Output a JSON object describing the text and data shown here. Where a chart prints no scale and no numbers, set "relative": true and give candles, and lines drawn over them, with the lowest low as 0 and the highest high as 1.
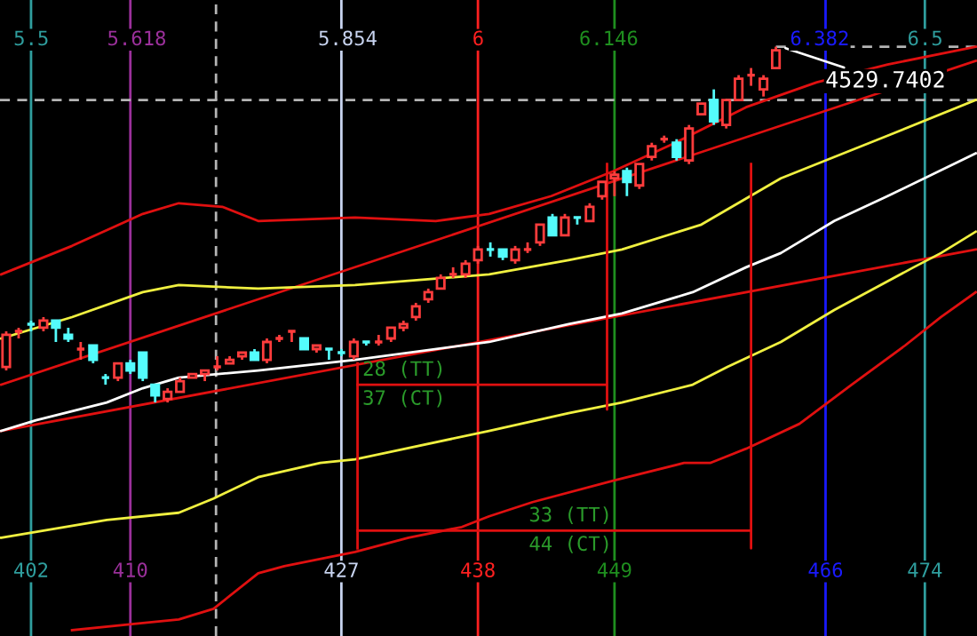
{
  "chart_data": {
    "type": "candlestick",
    "relative": true,
    "tick_labels": "x",
    "x": [
      400,
      401,
      402,
      403,
      404,
      405,
      406,
      407,
      408,
      409,
      410,
      411,
      412,
      413,
      414,
      415,
      416,
      417,
      418,
      419,
      420,
      421,
      422,
      423,
      424,
      425,
      426,
      427,
      428,
      429,
      430,
      431,
      432,
      433,
      434,
      435,
      436,
      437,
      438,
      439,
      440,
      441,
      442,
      443,
      444,
      445,
      446,
      447,
      448,
      449,
      450,
      451,
      452,
      453,
      454,
      455,
      456,
      457,
      458,
      459,
      460,
      461,
      462
    ],
    "ohlc": [
      [
        0.1,
        0.2,
        0.09,
        0.19
      ],
      [
        0.2,
        0.21,
        0.18,
        0.2
      ],
      [
        0.22,
        0.23,
        0.2,
        0.22
      ],
      [
        0.21,
        0.24,
        0.2,
        0.23
      ],
      [
        0.23,
        0.23,
        0.17,
        0.21
      ],
      [
        0.19,
        0.21,
        0.17,
        0.18
      ],
      [
        0.15,
        0.17,
        0.12,
        0.15
      ],
      [
        0.16,
        0.16,
        0.11,
        0.12
      ],
      [
        0.07,
        0.08,
        0.05,
        0.07
      ],
      [
        0.07,
        0.11,
        0.06,
        0.11
      ],
      [
        0.11,
        0.12,
        0.08,
        0.09
      ],
      [
        0.14,
        0.14,
        0.06,
        0.07
      ],
      [
        0.05,
        0.05,
        0.0,
        0.02
      ],
      [
        0.01,
        0.04,
        0,
        0.03
      ],
      [
        0.03,
        0.07,
        0.03,
        0.06
      ],
      [
        0.07,
        0.08,
        0.07,
        0.08
      ],
      [
        0.08,
        0.09,
        0.06,
        0.09
      ],
      [
        0.1,
        0.13,
        0.09,
        0.1
      ],
      [
        0.11,
        0.13,
        0.11,
        0.12
      ],
      [
        0.13,
        0.14,
        0.12,
        0.14
      ],
      [
        0.14,
        0.15,
        0.12,
        0.12
      ],
      [
        0.12,
        0.18,
        0.11,
        0.17
      ],
      [
        0.18,
        0.19,
        0.17,
        0.18
      ],
      [
        0.2,
        0.2,
        0.17,
        0.2
      ],
      [
        0.18,
        0.18,
        0.15,
        0.15
      ],
      [
        0.15,
        0.16,
        0.14,
        0.16
      ],
      [
        0.15,
        0.15,
        0.12,
        0.15
      ],
      [
        0.14,
        0.15,
        0.13,
        0.14
      ],
      [
        0.13,
        0.18,
        0.12,
        0.17
      ],
      [
        0.17,
        0.17,
        0.16,
        0.17
      ],
      [
        0.17,
        0.19,
        0.16,
        0.17
      ],
      [
        0.18,
        0.21,
        0.17,
        0.21
      ],
      [
        0.21,
        0.23,
        0.2,
        0.22
      ],
      [
        0.24,
        0.28,
        0.23,
        0.27
      ],
      [
        0.29,
        0.32,
        0.28,
        0.31
      ],
      [
        0.32,
        0.36,
        0.32,
        0.35
      ],
      [
        0.36,
        0.38,
        0.35,
        0.36
      ],
      [
        0.36,
        0.4,
        0.35,
        0.39
      ],
      [
        0.4,
        0.44,
        0.39,
        0.43
      ],
      [
        0.43,
        0.45,
        0.41,
        0.43
      ],
      [
        0.43,
        0.43,
        0.4,
        0.41
      ],
      [
        0.4,
        0.44,
        0.39,
        0.43
      ],
      [
        0.43,
        0.45,
        0.42,
        0.43
      ],
      [
        0.45,
        0.5,
        0.44,
        0.5
      ],
      [
        0.52,
        0.53,
        0.47,
        0.47
      ],
      [
        0.47,
        0.53,
        0.47,
        0.52
      ],
      [
        0.52,
        0.52,
        0.5,
        0.52
      ],
      [
        0.51,
        0.56,
        0.51,
        0.55
      ],
      [
        0.58,
        0.62,
        0.57,
        0.62
      ],
      [
        0.63,
        0.65,
        0.58,
        0.64
      ],
      [
        0.65,
        0.66,
        0.58,
        0.62
      ],
      [
        0.61,
        0.67,
        0.6,
        0.67
      ],
      [
        0.69,
        0.73,
        0.68,
        0.72
      ],
      [
        0.74,
        0.75,
        0.73,
        0.74
      ],
      [
        0.73,
        0.74,
        0.68,
        0.69
      ],
      [
        0.68,
        0.78,
        0.67,
        0.77
      ],
      [
        0.81,
        0.84,
        0.81,
        0.84
      ],
      [
        0.85,
        0.88,
        0.78,
        0.79
      ],
      [
        0.78,
        0.85,
        0.77,
        0.85
      ],
      [
        0.85,
        0.92,
        0.85,
        0.91
      ],
      [
        0.92,
        0.94,
        0.89,
        0.92
      ],
      [
        0.88,
        0.92,
        0.86,
        0.91
      ],
      [
        0.94,
        1,
        0.94,
        0.99
      ]
    ],
    "colors": [
      "#ff3c3c",
      "#ff3c3c",
      "#54fcfc",
      "#ff3c3c",
      "#54fcfc",
      "#54fcfc",
      "#ff3c3c",
      "#54fcfc",
      "#54fcfc",
      "#ff3c3c",
      "#54fcfc",
      "#54fcfc",
      "#54fcfc",
      "#ff3c3c",
      "#ff3c3c",
      "#ff3c3c",
      "#ff3c3c",
      "#ff3c3c",
      "#ff3c3c",
      "#ff3c3c",
      "#54fcfc",
      "#ff3c3c",
      "#ff3c3c",
      "#ff3c3c",
      "#54fcfc",
      "#ff3c3c",
      "#54fcfc",
      "#54fcfc",
      "#ff3c3c",
      "#54fcfc",
      "#ff3c3c",
      "#ff3c3c",
      "#ff3c3c",
      "#ff3c3c",
      "#ff3c3c",
      "#ff3c3c",
      "#ff3c3c",
      "#ff3c3c",
      "#ff3c3c",
      "#54fcfc",
      "#54fcfc",
      "#ff3c3c",
      "#ff3c3c",
      "#ff3c3c",
      "#54fcfc",
      "#ff3c3c",
      "#54fcfc",
      "#ff3c3c",
      "#ff3c3c",
      "#ff3c3c",
      "#54fcfc",
      "#ff3c3c",
      "#ff3c3c",
      "#ff3c3c",
      "#54fcfc",
      "#ff3c3c",
      "#ff3c3c",
      "#54fcfc",
      "#ff3c3c",
      "#ff3c3c",
      "#ff3c3c",
      "#ff3c3c",
      "#ff3c3c"
    ],
    "series": [
      {
        "type": "line",
        "color": "#e01010",
        "x": [
          399.6,
          405.3,
          411,
          413.9,
          417.4,
          420.3,
          428.1,
          434.6,
          438.9,
          443.9,
          448.9,
          453.9,
          459.6,
          465.3,
          471,
          478.1
        ],
        "values": [
          0.36,
          0.44,
          0.53,
          0.56,
          0.55,
          0.51,
          0.52,
          0.51,
          0.53,
          0.58,
          0.65,
          0.73,
          0.83,
          0.9,
          0.95,
          1.0
        ]
      },
      {
        "type": "line",
        "color": "#e01010",
        "x": [
          399.6,
          478.1
        ],
        "values": [
          0.05,
          0.96
        ]
      },
      {
        "type": "line",
        "color": "#e01010",
        "x": [
          399.6,
          478.1
        ],
        "values": [
          -0.08,
          0.43
        ]
      },
      {
        "type": "line",
        "color": "#f0f040",
        "x": [
          399.6,
          405.3,
          411,
          413.9,
          420.3,
          428.1,
          438.9,
          445.3,
          449.6,
          456,
          462.4,
          466.7,
          471,
          478.1
        ],
        "values": [
          0.18,
          0.24,
          0.31,
          0.33,
          0.32,
          0.33,
          0.36,
          0.4,
          0.43,
          0.5,
          0.63,
          0.69,
          0.75,
          0.85
        ]
      },
      {
        "type": "line",
        "color": "#ffffff",
        "x": [
          399.6,
          402.4,
          408.1,
          411,
          413.9,
          420.3,
          428.1,
          438.9,
          445.3,
          449.6,
          455.3,
          459.6,
          462.4,
          466.7,
          471,
          478.1
        ],
        "values": [
          -0.08,
          -0.05,
          0,
          0.04,
          0.07,
          0.09,
          0.12,
          0.17,
          0.22,
          0.25,
          0.31,
          0.38,
          0.42,
          0.51,
          0.58,
          0.7
        ]
      },
      {
        "type": "line",
        "color": "#f0f040",
        "x": [
          399.6,
          408.1,
          413.9,
          416.7,
          420.3,
          425.3,
          428.1,
          438.9,
          445.3,
          449.6,
          455.3,
          458.1,
          462.4,
          466.7,
          473.1,
          475.3,
          478.1
        ],
        "values": [
          -0.38,
          -0.33,
          -0.31,
          -0.27,
          -0.21,
          -0.17,
          -0.16,
          -0.08,
          -0.03,
          0,
          0.05,
          0.1,
          0.17,
          0.26,
          0.38,
          0.42,
          0.48
        ]
      },
      {
        "type": "line",
        "color": "#e01010",
        "x": [
          405.3,
          411,
          413.9,
          416.7,
          420.3,
          422.4,
          428.1,
          432.4,
          436.7,
          438.9,
          442.4,
          448.9,
          454.6,
          456.7,
          459.6,
          463.9,
          468.1,
          472.4,
          475.3,
          478.1
        ],
        "values": [
          -0.64,
          -0.62,
          -0.61,
          -0.58,
          -0.48,
          -0.46,
          -0.42,
          -0.38,
          -0.35,
          -0.32,
          -0.28,
          -0.22,
          -0.17,
          -0.17,
          -0.13,
          -0.06,
          0.05,
          0.16,
          0.24,
          0.31
        ]
      },
      {
        "type": "line",
        "color": "#e01010",
        "x": [
          428.3,
          428.3
        ],
        "values": [
          0.11,
          -0.41
        ]
      },
      {
        "type": "line",
        "color": "#e01010",
        "x": [
          428.3,
          448.4,
          448.4,
          448.4
        ],
        "values": [
          0.05,
          0.05,
          -0.02,
          0.67
        ]
      },
      {
        "type": "line",
        "color": "#e01010",
        "x": [
          428.3,
          460,
          460,
          460
        ],
        "values": [
          -0.36,
          -0.36,
          -0.41,
          0.67
        ]
      }
    ],
    "xlim": [
      399.5,
      478.2
    ],
    "x2lim": [
      5.465,
      6.558
    ],
    "x2ticks": [
      5.5,
      5.618,
      5.854,
      6,
      6.146,
      6.382,
      6.5
    ],
    "xticks": [
      402,
      410,
      427,
      438,
      449,
      466,
      474
    ],
    "ref_lines": [
      {
        "axis": "x",
        "value": 402,
        "color": "#2f9e9e"
      },
      {
        "axis": "x",
        "value": 410,
        "color": "#9b309b"
      },
      {
        "axis": "x",
        "value": 427,
        "color": "#c8d4f0"
      },
      {
        "axis": "x",
        "value": 438,
        "color": "#ff2020"
      },
      {
        "axis": "x",
        "value": 449,
        "color": "#1f8f1f"
      },
      {
        "axis": "x",
        "value": 466,
        "color": "#1a1aff"
      },
      {
        "axis": "x",
        "value": 474,
        "color": "#2f9e9e"
      },
      {
        "axis": "x",
        "value": 416.9,
        "color": "#b4b4b4",
        "line_style": "dashed"
      },
      {
        "axis": "y",
        "value": 0.85,
        "color": "#b4b4b4",
        "line_style": "dashed"
      }
    ],
    "annotations": [
      {
        "text": "4529.7402",
        "x": 462,
        "y": 1
      },
      {
        "text": "28 (TT)",
        "x": 428.3,
        "y": 0.05
      },
      {
        "text": "37 (CT)",
        "x": 428.3,
        "y": 0.05
      },
      {
        "text": "33 (TT)",
        "x": 441.7,
        "y": -0.36
      },
      {
        "text": "44 (CT)",
        "x": 441.7,
        "y": -0.36
      }
    ]
  }
}
